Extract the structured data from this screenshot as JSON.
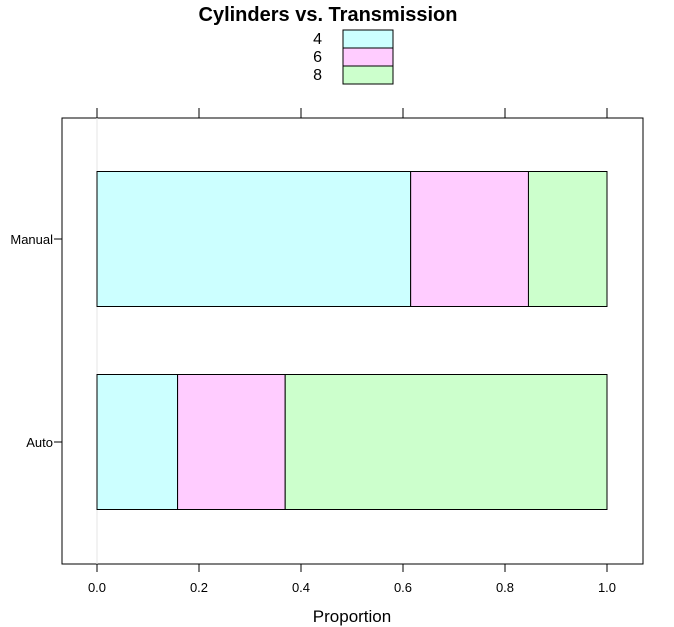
{
  "chart_data": {
    "type": "bar",
    "orientation": "horizontal",
    "stacked": true,
    "title": "Cylinders vs. Transmission",
    "xlabel": "Proportion",
    "ylabel": "",
    "xlim": [
      0,
      1
    ],
    "xticks": [
      "0.0",
      "0.2",
      "0.4",
      "0.6",
      "0.8",
      "1.0"
    ],
    "categories": [
      "Manual",
      "Auto"
    ],
    "series": [
      {
        "name": "4",
        "color": "#ccffff",
        "values": [
          0.615,
          0.158
        ]
      },
      {
        "name": "6",
        "color": "#ffccff",
        "values": [
          0.231,
          0.211
        ]
      },
      {
        "name": "8",
        "color": "#ccffcc",
        "values": [
          0.154,
          0.631
        ]
      }
    ],
    "legend_position": "top",
    "grid": false
  }
}
